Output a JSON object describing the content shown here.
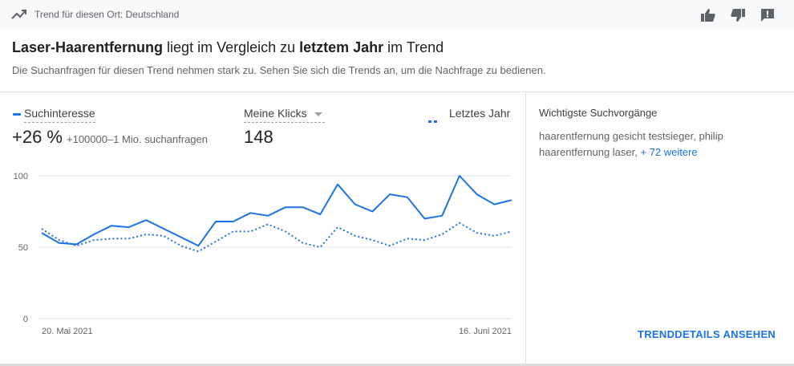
{
  "topbar": {
    "location_text": "Trend für diesen Ort: Deutschland",
    "icons": [
      "trending-up-icon",
      "thumb-up-icon",
      "thumb-down-icon",
      "feedback-icon"
    ]
  },
  "header": {
    "headline_term": "Laser-Haarentfernung",
    "headline_mid": " liegt im Vergleich zu ",
    "headline_emph": "letztem Jahr",
    "headline_end": " im Trend",
    "subtitle": "Die Suchanfragen für diesen Trend nehmen stark zu. Sehen Sie sich die Trends an, um die Nachfrage zu bedienen."
  },
  "metrics": {
    "interest_label": "Suchinteresse",
    "interest_change": "+26 %",
    "interest_volume": "+100000–1 Mio. suchanfragen",
    "clicks_label": "Meine Klicks",
    "clicks_value": "148",
    "last_year_label": "Letztes Jahr"
  },
  "colors": {
    "accent": "#1a73e8",
    "grid": "#e0e0e0",
    "text_secondary": "#5f6368"
  },
  "chart_data": {
    "type": "line",
    "x_labels": [
      "20. Mai 2021",
      "16. Juni 2021"
    ],
    "y_ticks": [
      "100",
      "50",
      "0"
    ],
    "ylim": [
      0,
      100
    ],
    "grid": true,
    "series": [
      {
        "name": "Suchinteresse",
        "style": "solid",
        "values": [
          60,
          53,
          52,
          59,
          65,
          64,
          69,
          63,
          57,
          51,
          68,
          68,
          74,
          72,
          78,
          78,
          73,
          94,
          80,
          75,
          87,
          85,
          70,
          72,
          100,
          87,
          80,
          83
        ]
      },
      {
        "name": "Letztes Jahr",
        "style": "dotted",
        "values": [
          63,
          55,
          51,
          55,
          56,
          56,
          59,
          58,
          51,
          47,
          54,
          61,
          61,
          66,
          61,
          53,
          50,
          64,
          58,
          55,
          51,
          56,
          55,
          59,
          67,
          60,
          58,
          61
        ]
      }
    ]
  },
  "sidebar": {
    "title": "Wichtigste Suchvorgänge",
    "queries_text": "haarentfernung gesicht testsieger, philip haarentfernung laser, ",
    "more_link": "+ 72 weitere",
    "details_button": "TRENDDETAILS ANSEHEN"
  }
}
